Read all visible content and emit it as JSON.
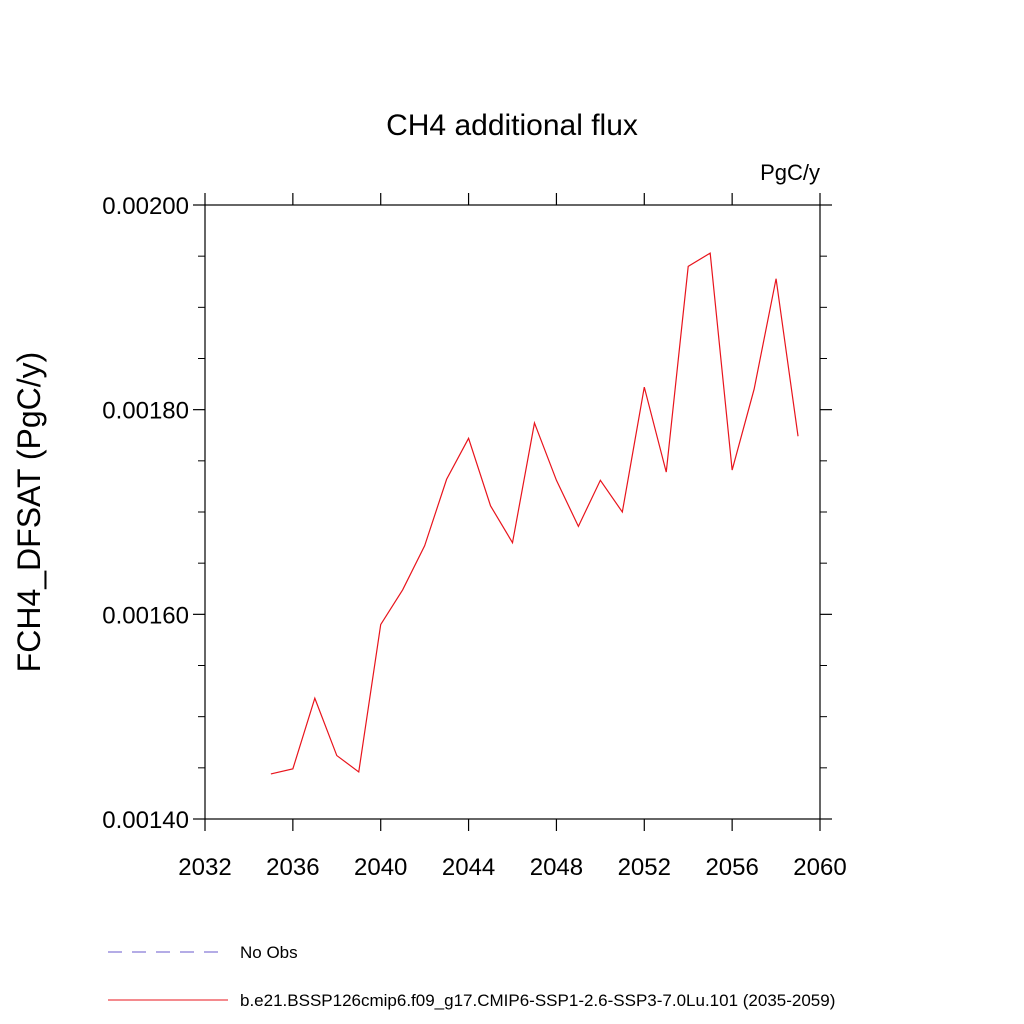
{
  "chart_data": {
    "type": "line",
    "title": "CH4 additional flux",
    "units_label": "PgC/y",
    "ylabel": "FCH4_DFSAT  (PgC/y)",
    "xlabel": "",
    "xlim": [
      2032,
      2060
    ],
    "ylim": [
      0.0014,
      0.002
    ],
    "x_ticks": [
      2032,
      2036,
      2040,
      2044,
      2048,
      2052,
      2056,
      2060
    ],
    "x_tick_labels": [
      "2032",
      "2036",
      "2040",
      "2044",
      "2048",
      "2052",
      "2056",
      "2060"
    ],
    "y_ticks": [
      0.0014,
      0.0016,
      0.0018,
      0.002
    ],
    "y_tick_labels": [
      "0.00140",
      "0.00160",
      "0.00180",
      "0.00200"
    ],
    "grid": false,
    "legend_position": "bottom",
    "series": [
      {
        "name": "No Obs",
        "color": "#6a5acd",
        "style": "dashed",
        "x": [],
        "values": []
      },
      {
        "name": "b.e21.BSSP126cmip6.f09_g17.CMIP6-SSP1-2.6-SSP3-7.0Lu.101 (2035-2059)",
        "color": "#e8141c",
        "style": "solid",
        "x": [
          2035,
          2036,
          2037,
          2038,
          2039,
          2040,
          2041,
          2042,
          2043,
          2044,
          2045,
          2046,
          2047,
          2048,
          2049,
          2050,
          2051,
          2052,
          2053,
          2054,
          2055,
          2056,
          2057,
          2058,
          2059
        ],
        "values": [
          0.001444,
          0.001449,
          0.001518,
          0.001462,
          0.001446,
          0.00159,
          0.001624,
          0.001667,
          0.001732,
          0.001772,
          0.001706,
          0.00167,
          0.001787,
          0.001731,
          0.001686,
          0.001731,
          0.0017,
          0.001822,
          0.001739,
          0.00194,
          0.001953,
          0.001741,
          0.00182,
          0.001928,
          0.001774
        ]
      }
    ]
  }
}
